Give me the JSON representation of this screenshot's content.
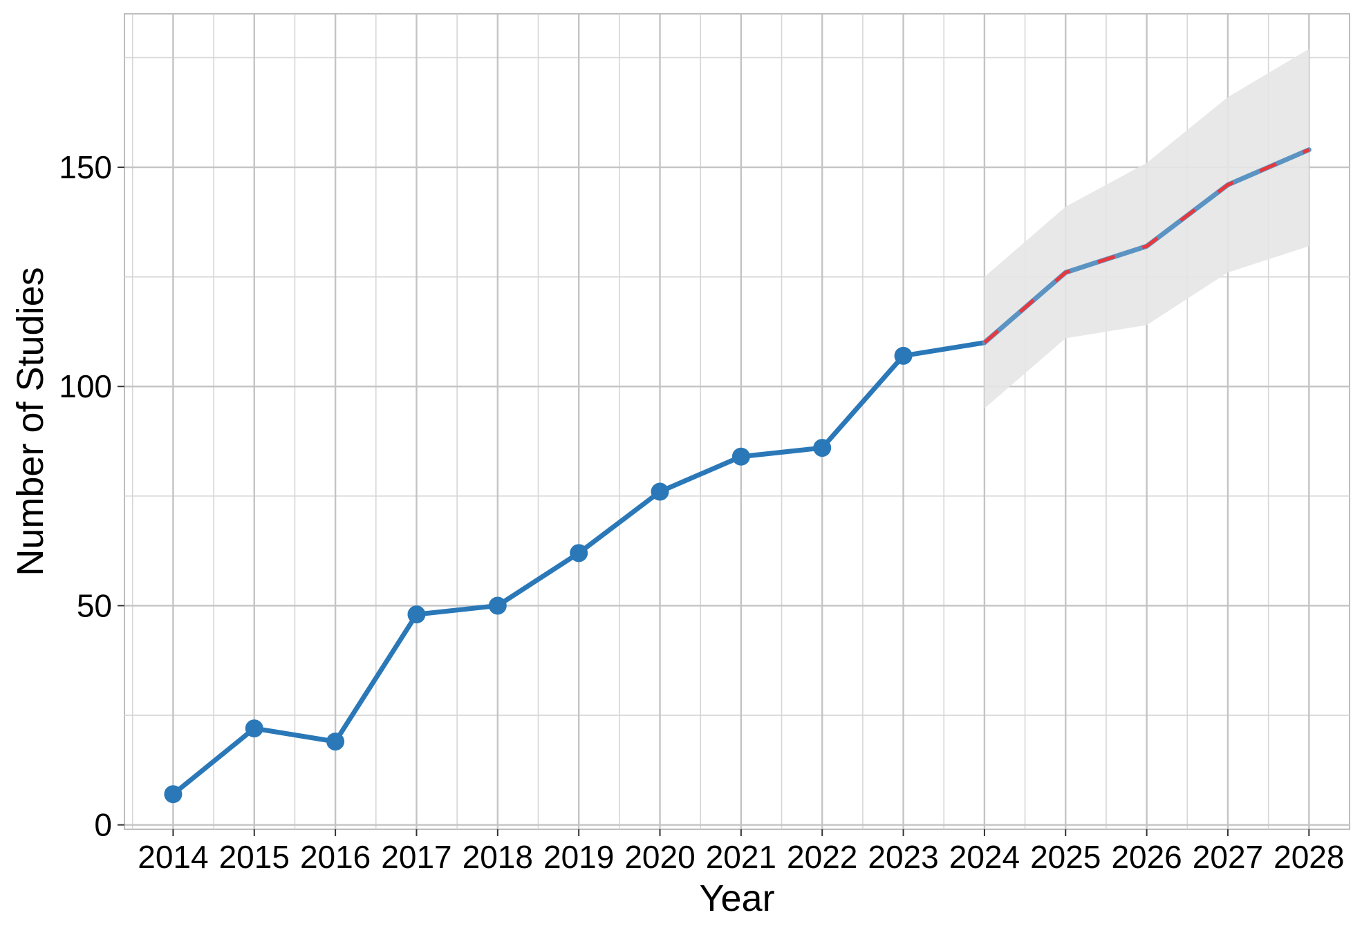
{
  "chart_data": {
    "type": "line",
    "xlabel": "Year",
    "ylabel": "Number of Studies",
    "x": [
      2014,
      2015,
      2016,
      2017,
      2018,
      2019,
      2020,
      2021,
      2022,
      2023,
      2024,
      2025,
      2026,
      2027,
      2028
    ],
    "x_ticks": [
      "2014",
      "2015",
      "2016",
      "2017",
      "2018",
      "2019",
      "2020",
      "2021",
      "2022",
      "2023",
      "2024",
      "2025",
      "2026",
      "2027",
      "2028"
    ],
    "y_ticks": [
      "0",
      "50",
      "100",
      "150"
    ],
    "xlim": [
      2013.4,
      2028.5
    ],
    "ylim": [
      -1,
      185
    ],
    "grid": true,
    "legend": "none",
    "series": [
      {
        "kind": "observed",
        "x": [
          2014,
          2015,
          2016,
          2017,
          2018,
          2019,
          2020,
          2021,
          2022,
          2023,
          2024
        ],
        "y": [
          7,
          22,
          19,
          48,
          50,
          62,
          76,
          84,
          86,
          107,
          110
        ],
        "markers": true,
        "color": "#2a78b8"
      },
      {
        "kind": "forecast",
        "x": [
          2024,
          2025,
          2026,
          2027,
          2028
        ],
        "y": [
          110,
          126,
          132,
          146,
          154
        ],
        "markers": false,
        "color": "#5b93c2",
        "dash_color": "#e8383d"
      }
    ],
    "confidence_band": {
      "x": [
        2024,
        2025,
        2026,
        2027,
        2028
      ],
      "lower": [
        95,
        111,
        114,
        126,
        132
      ],
      "upper": [
        125,
        141,
        151,
        166,
        177
      ],
      "color": "#e6e6e6"
    }
  }
}
